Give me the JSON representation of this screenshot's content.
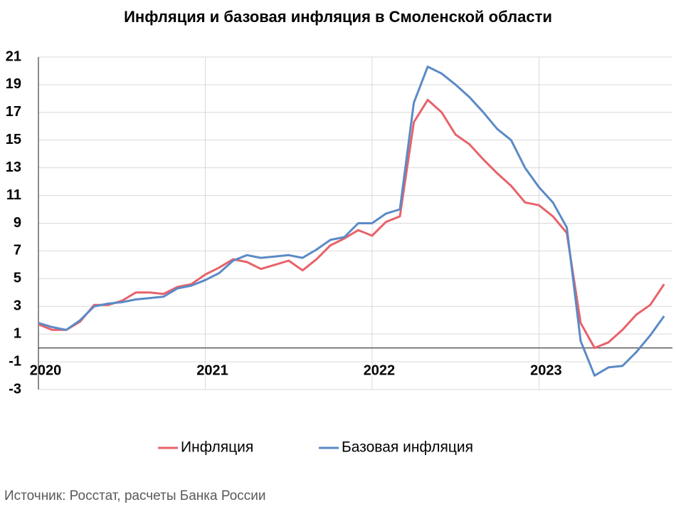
{
  "chart_data": {
    "type": "line",
    "title": "Инфляция и базовая инфляция в Смоленской области",
    "source": "Источник: Росстат, расчеты Банка России",
    "x": [
      2020,
      2020.0833,
      2020.1667,
      2020.25,
      2020.3333,
      2020.4167,
      2020.5,
      2020.5833,
      2020.6667,
      2020.75,
      2020.8333,
      2020.9167,
      2021,
      2021.0833,
      2021.1667,
      2021.25,
      2021.3333,
      2021.4167,
      2021.5,
      2021.5833,
      2021.6667,
      2021.75,
      2021.8333,
      2021.9167,
      2022,
      2022.0833,
      2022.1667,
      2022.25,
      2022.3333,
      2022.4167,
      2022.5,
      2022.5833,
      2022.6667,
      2022.75,
      2022.8333,
      2022.9167,
      2023,
      2023.0833,
      2023.1667,
      2023.25,
      2023.3333,
      2023.4167,
      2023.5,
      2023.5833,
      2023.6667,
      2023.75
    ],
    "series": [
      {
        "name": "Инфляция",
        "color": "#e8626a",
        "values": [
          1.7,
          1.3,
          1.3,
          1.9,
          3.1,
          3.1,
          3.4,
          4.0,
          4.0,
          3.9,
          4.4,
          4.6,
          5.3,
          5.8,
          6.4,
          6.2,
          5.7,
          6.0,
          6.3,
          5.6,
          6.4,
          7.4,
          7.9,
          8.5,
          8.1,
          9.1,
          9.5,
          16.3,
          17.9,
          17.0,
          15.4,
          14.7,
          13.6,
          12.6,
          11.7,
          10.5,
          10.3,
          9.5,
          8.3,
          1.8,
          0.0,
          0.4,
          1.3,
          2.4,
          3.1,
          4.6
        ]
      },
      {
        "name": "Базовая инфляция",
        "color": "#5b8ac6",
        "values": [
          1.8,
          1.5,
          1.3,
          2.0,
          3.0,
          3.2,
          3.3,
          3.5,
          3.6,
          3.7,
          4.3,
          4.5,
          4.9,
          5.4,
          6.3,
          6.7,
          6.5,
          6.6,
          6.7,
          6.5,
          7.1,
          7.8,
          8.0,
          9.0,
          9.0,
          9.7,
          10.0,
          17.7,
          20.3,
          19.8,
          19.0,
          18.1,
          17.0,
          15.8,
          15.0,
          13.0,
          11.6,
          10.5,
          8.7,
          0.5,
          -2.0,
          -1.4,
          -1.3,
          -0.3,
          0.9,
          2.3
        ]
      }
    ],
    "xlim": [
      2020,
      2023.8
    ],
    "xticks": [
      2020,
      2021,
      2022,
      2023
    ],
    "ylim": [
      -3,
      21
    ],
    "yticks": [
      -3,
      -1,
      1,
      3,
      5,
      7,
      9,
      11,
      13,
      15,
      17,
      19,
      21
    ],
    "grid": true,
    "legend": "bottom"
  }
}
